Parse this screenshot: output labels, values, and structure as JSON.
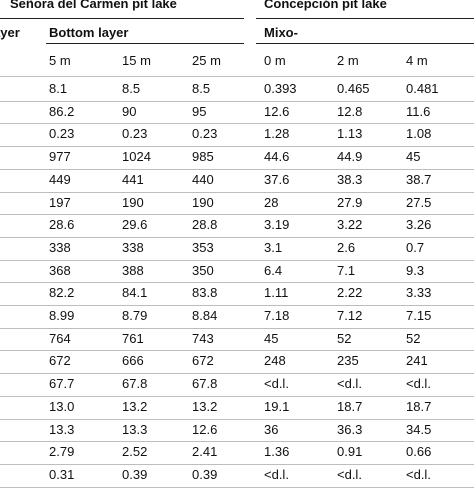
{
  "table": {
    "group_headers": {
      "left_cut": "ayer",
      "senora": "Señora del Carmen pit lake",
      "concepcion": "Concepción pit lake"
    },
    "sub_headers": {
      "bottom_layer": "Bottom layer",
      "mixo": "Mixo-"
    },
    "depths": [
      "5 m",
      "15 m",
      "25 m",
      "0 m",
      "2 m",
      "4 m"
    ],
    "rows": [
      [
        "8.1",
        "8.5",
        "8.5",
        "0.393",
        "0.465",
        "0.481"
      ],
      [
        "86.2",
        "90",
        "95",
        "12.6",
        "12.8",
        "11.6"
      ],
      [
        "0.23",
        "0.23",
        "0.23",
        "1.28",
        "1.13",
        "1.08"
      ],
      [
        "977",
        "1024",
        "985",
        "44.6",
        "44.9",
        "45"
      ],
      [
        "449",
        "441",
        "440",
        "37.6",
        "38.3",
        "38.7"
      ],
      [
        "197",
        "190",
        "190",
        "28",
        "27.9",
        "27.5"
      ],
      [
        "28.6",
        "29.6",
        "28.8",
        "3.19",
        "3.22",
        "3.26"
      ],
      [
        "338",
        "338",
        "353",
        "3.1",
        "2.6",
        "0.7"
      ],
      [
        "368",
        "388",
        "350",
        "6.4",
        "7.1",
        "9.3"
      ],
      [
        "82.2",
        "84.1",
        "83.8",
        "1.11",
        "2.22",
        "3.33"
      ],
      [
        "8.99",
        "8.79",
        "8.84",
        "7.18",
        "7.12",
        "7.15"
      ],
      [
        "764",
        "761",
        "743",
        "45",
        "52",
        "52"
      ],
      [
        "672",
        "666",
        "672",
        "248",
        "235",
        "241"
      ],
      [
        "67.7",
        "67.8",
        "67.8",
        "<d.l.",
        "<d.l.",
        "<d.l."
      ],
      [
        "13.0",
        "13.2",
        "13.2",
        "19.1",
        "18.7",
        "18.7"
      ],
      [
        "13.3",
        "13.3",
        "12.6",
        "36",
        "36.3",
        "34.5"
      ],
      [
        "2.79",
        "2.52",
        "2.41",
        "1.36",
        "0.91",
        "0.66"
      ],
      [
        "0.31",
        "0.39",
        "0.39",
        "<d.l.",
        "<d.l.",
        "<d.l."
      ]
    ]
  }
}
